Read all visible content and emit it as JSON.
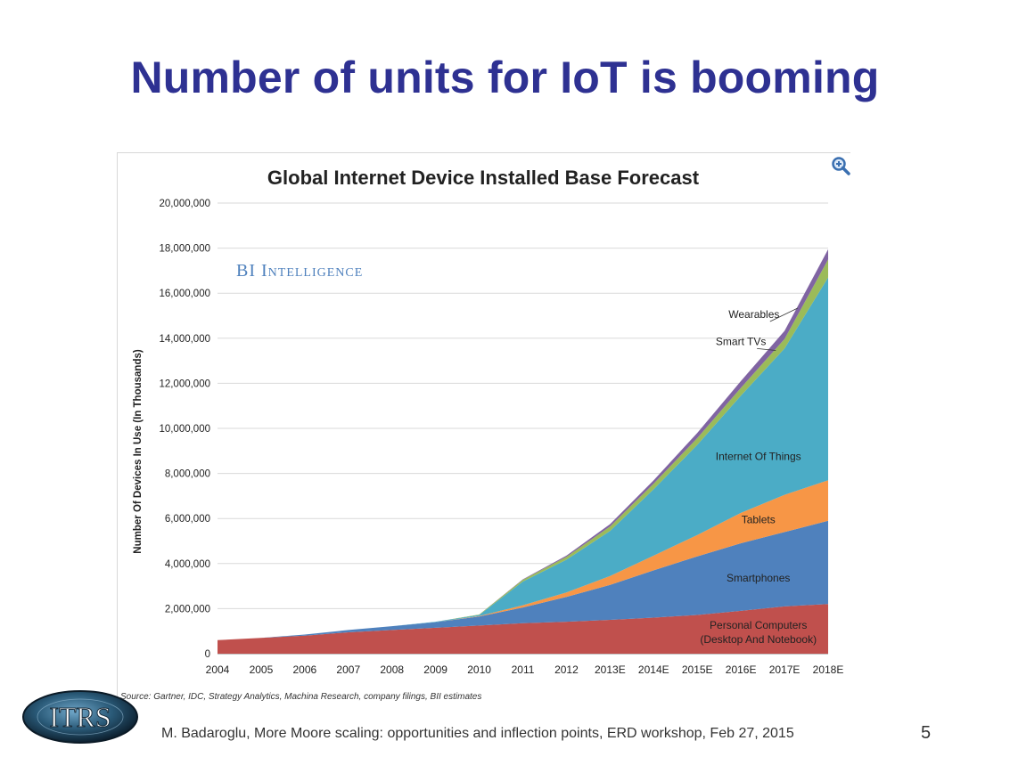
{
  "slide": {
    "title": "Number of units for IoT is booming",
    "footer": "M. Badaroglu, More Moore scaling: opportunities and inflection points, ERD workshop, Feb 27, 2015",
    "page_number": "5",
    "logo_text": "ITRS"
  },
  "colors": {
    "title": "#2e3192",
    "pc": "#c0504d",
    "smartphones": "#4f81bd",
    "tablets": "#f79646",
    "iot": "#4bacc6",
    "smart_tvs": "#9bbb59",
    "wearables": "#8064a2"
  },
  "chart_data": {
    "type": "area",
    "stacked": true,
    "title": "Global Internet Device Installed Base Forecast",
    "watermark": "BI Intelligence",
    "ylabel": "Number Of Devices In Use (In Thousands)",
    "xlabel": "",
    "source": "Source: Gartner, IDC, Strategy Analytics, Machina Research, company filings, BII estimates",
    "ylim": [
      0,
      20000000
    ],
    "yticks": [
      0,
      2000000,
      4000000,
      6000000,
      8000000,
      10000000,
      12000000,
      14000000,
      16000000,
      18000000,
      20000000
    ],
    "ytick_labels": [
      "0",
      "2,000,000",
      "4,000,000",
      "6,000,000",
      "8,000,000",
      "10,000,000",
      "12,000,000",
      "14,000,000",
      "16,000,000",
      "18,000,000",
      "20,000,000"
    ],
    "categories": [
      "2004",
      "2005",
      "2006",
      "2007",
      "2008",
      "2009",
      "2010",
      "2011",
      "2012",
      "2013E",
      "2014E",
      "2015E",
      "2016E",
      "2017E",
      "2018E"
    ],
    "grid": true,
    "series": [
      {
        "name": "Personal Computers",
        "label_lines": [
          "Personal Computers",
          "(Desktop And Notebook)"
        ],
        "color_key": "pc",
        "values": [
          600000,
          700000,
          800000,
          950000,
          1050000,
          1150000,
          1250000,
          1350000,
          1420000,
          1500000,
          1600000,
          1720000,
          1900000,
          2100000,
          2200000
        ]
      },
      {
        "name": "Smartphones",
        "label_lines": [
          "Smartphones"
        ],
        "color_key": "smartphones",
        "values": [
          0,
          0,
          50000,
          100000,
          170000,
          250000,
          400000,
          700000,
          1100000,
          1550000,
          2100000,
          2600000,
          3000000,
          3300000,
          3700000
        ]
      },
      {
        "name": "Tablets",
        "label_lines": [
          "Tablets"
        ],
        "color_key": "tablets",
        "values": [
          0,
          0,
          0,
          0,
          0,
          0,
          20000,
          100000,
          200000,
          400000,
          650000,
          950000,
          1350000,
          1650000,
          1800000
        ]
      },
      {
        "name": "Internet Of Things",
        "label_lines": [
          "Internet Of Things"
        ],
        "color_key": "iot",
        "values": [
          0,
          0,
          0,
          0,
          0,
          20000,
          50000,
          1050000,
          1450000,
          2000000,
          2950000,
          4000000,
          5200000,
          6500000,
          9000000
        ]
      },
      {
        "name": "Smart TVs",
        "label_lines": [
          "Smart TVs"
        ],
        "color_key": "smart_tvs",
        "values": [
          0,
          0,
          0,
          0,
          0,
          0,
          20000,
          80000,
          130000,
          200000,
          250000,
          300000,
          350000,
          420000,
          800000
        ]
      },
      {
        "name": "Wearables",
        "label_lines": [
          "Wearables"
        ],
        "color_key": "wearables",
        "values": [
          0,
          0,
          0,
          0,
          0,
          0,
          0,
          20000,
          50000,
          100000,
          150000,
          230000,
          300000,
          360000,
          450000
        ]
      }
    ]
  }
}
